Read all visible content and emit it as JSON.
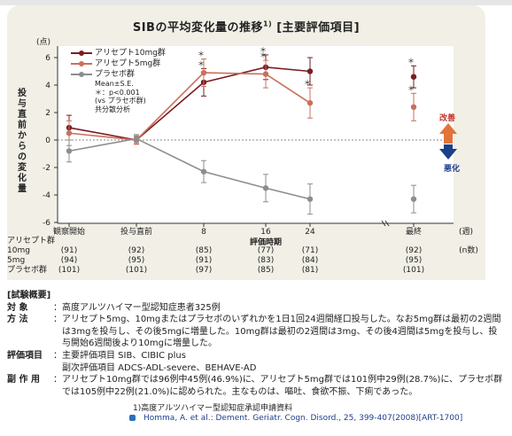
{
  "title": "SIBの平均変化量の推移",
  "title_note": "1)",
  "title_bracket": "[主要評価項目]",
  "chart_data": {
    "type": "line",
    "title": "SIBの平均変化量の推移",
    "ylabel": "投与直前からの変化量",
    "yunit": "(点)",
    "xlabel": "評価時期",
    "xunit": "(週)",
    "ylim": [
      -6,
      7
    ],
    "yticks": [
      6,
      4,
      2,
      0,
      -2,
      -4,
      -6
    ],
    "categories": [
      "観察開始",
      "投与直前",
      "8",
      "16",
      "24",
      "最終"
    ],
    "series": [
      {
        "name": "アリセプト10mg群",
        "color": "#7a1c23",
        "values": [
          0.9,
          0.0,
          4.2,
          5.3,
          5.0,
          4.6
        ],
        "err": [
          0.9,
          0.3,
          1.0,
          0.9,
          1.0,
          0.8
        ],
        "sig": [
          false,
          false,
          true,
          true,
          false,
          true
        ]
      },
      {
        "name": "アリセプト5mg群",
        "color": "#c9705c",
        "values": [
          0.5,
          0.0,
          4.9,
          4.8,
          2.7,
          2.4
        ],
        "err": [
          0.9,
          0.3,
          1.0,
          1.0,
          1.1,
          1.0
        ],
        "sig": [
          false,
          false,
          true,
          true,
          true,
          true
        ]
      },
      {
        "name": "プラセボ群",
        "color": "#8d8d8d",
        "values": [
          -0.8,
          0.1,
          -2.3,
          -3.5,
          -4.3,
          -4.3
        ],
        "err": [
          0.8,
          0.3,
          0.8,
          1.0,
          1.1,
          1.0
        ],
        "sig": [
          false,
          false,
          false,
          false,
          false,
          false
        ]
      }
    ],
    "legend_note": [
      "Mean±S.E.",
      "＊：p<0.001",
      "(vs プラセボ群)",
      "共分散分析"
    ],
    "legend_position": "top-left",
    "annotations": {
      "up": "改善",
      "down": "悪化"
    },
    "n_table": {
      "label_row": "アリセプト群",
      "rows": [
        {
          "label": "10mg",
          "values": [
            "(91)",
            "(92)",
            "(85)",
            "(77)",
            "(71)",
            "(92)"
          ],
          "unit": "(n数)"
        },
        {
          "label": "5mg",
          "values": [
            "(94)",
            "(95)",
            "(91)",
            "(83)",
            "(84)",
            "(95)"
          ]
        },
        {
          "label": "プラセボ群",
          "values": [
            "(101)",
            "(101)",
            "(97)",
            "(85)",
            "(81)",
            "(101)"
          ]
        }
      ]
    }
  },
  "summary": {
    "heading": "[試験概要]",
    "rows": [
      {
        "key": "対 象",
        "value": "高度アルツハイマー型認知症患者325例"
      },
      {
        "key": "方 法",
        "value": "アリセプト5mg、10mgまたはプラセボのいずれかを1日1回24週間経口投与した。なお5mg群は最初の2週間は3mgを投与し、その後5mgに増量した。10mg群は最初の2週間は3mg、その後4週間は5mgを投与し、投与開始6週間後より10mgに増量した。"
      },
      {
        "key": "評価項目",
        "value": "主要評価項目 SIB、CIBIC plus"
      },
      {
        "key": "",
        "value": "副次評価項目 ADCS-ADL-severe、BEHAVE-AD"
      },
      {
        "key": "副 作 用",
        "value": "アリセプト10mg群では96例中45例(46.9%)に、アリセプト5mg群では101例中29例(28.7%)に、プラセボ群では105例中22例(21.0%)に認められた。主なものは、嘔吐、食欲不振、下痢であった。"
      }
    ]
  },
  "reference": {
    "line1": "1)高度アルツハイマー型認知症承認申請資料",
    "line2": "Homma, A. et al.: Dement. Geriatr. Cogn. Disord., 25, 399-407(2008)[ART-1700]"
  }
}
